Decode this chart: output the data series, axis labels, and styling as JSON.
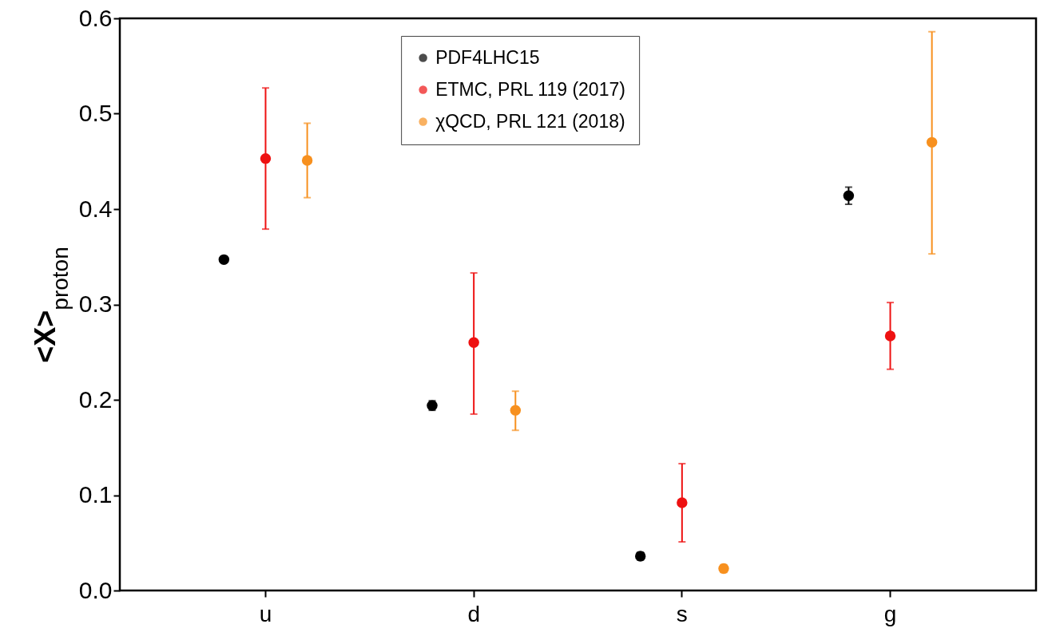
{
  "chart_data": {
    "type": "scatter",
    "ylabel": "<X>$_{proton}$",
    "categories": [
      "u",
      "d",
      "s",
      "g"
    ],
    "series": [
      {
        "name": "PDF4LHC15",
        "color": "#000000",
        "values": [
          0.347,
          0.194,
          0.036,
          0.414
        ],
        "errors": [
          [
            0.344,
            0.35
          ],
          [
            0.189,
            0.199
          ],
          [
            0.032,
            0.04
          ],
          [
            0.405,
            0.423
          ]
        ]
      },
      {
        "name": "ETMC, PRL 119 (2017)",
        "color": "#ee1111",
        "values": [
          0.453,
          0.26,
          0.092,
          0.267
        ],
        "errors": [
          [
            0.379,
            0.527
          ],
          [
            0.185,
            0.333
          ],
          [
            0.051,
            0.133
          ],
          [
            0.232,
            0.302
          ]
        ]
      },
      {
        "name": "χQCD, PRL 121 (2018)",
        "color": "#f7901e",
        "values": [
          0.451,
          0.189,
          0.023,
          0.47
        ],
        "errors": [
          [
            0.412,
            0.49
          ],
          [
            0.168,
            0.209
          ],
          [
            0.019,
            0.027
          ],
          [
            0.353,
            0.586
          ]
        ]
      }
    ],
    "ylim": [
      0,
      0.6
    ],
    "yticks": [
      {
        "value": 0,
        "label": "0.0"
      },
      0.1,
      0.2,
      0.3,
      0.4,
      0.5,
      0.6
    ],
    "grid": false,
    "legend": "top",
    "marker": "circle"
  }
}
